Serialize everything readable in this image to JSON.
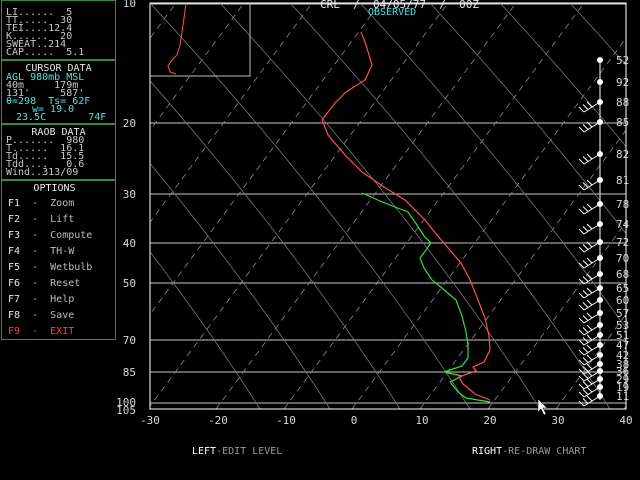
{
  "header": {
    "station": "CRL  /  04/05/77  /  00Z",
    "mode": "OBSERVED"
  },
  "indices": [
    "LI......  5",
    "TT.....  30",
    "TEI....12.4",
    "K......  20",
    "SWEAT..214",
    "CAP.....  5.1"
  ],
  "cursor": {
    "title": "CURSOR DATA",
    "row1": "AGL 980mb MSL",
    "row2": "40m     179m",
    "row3": "131'     587'",
    "row4": "θ=298  Ts= 62F",
    "row5": "w= 19.0",
    "row6": "23.5C       74F"
  },
  "raob": {
    "title": "RAOB DATA",
    "rows": [
      "P.......  980",
      "T......  16.1",
      "Td.....  15.5",
      "Tdd....   0.6",
      "Wind..313/09"
    ]
  },
  "options": {
    "title": "OPTIONS",
    "items": [
      {
        "key": "F1",
        "label": "Zoom"
      },
      {
        "key": "F2",
        "label": "Lift"
      },
      {
        "key": "F3",
        "label": "Compute"
      },
      {
        "key": "F4",
        "label": "TH-W"
      },
      {
        "key": "F5",
        "label": "Wetbulb"
      },
      {
        "key": "F6",
        "label": "Reset"
      },
      {
        "key": "F7",
        "label": "Help"
      },
      {
        "key": "F8",
        "label": "Save"
      },
      {
        "key": "F9",
        "label": "EXIT"
      }
    ]
  },
  "footer": {
    "left_key": "LEFT",
    "left_text": "-EDIT LEVEL",
    "right_key": "RIGHT",
    "right_text": "-RE-DRAW CHART"
  },
  "chart_data": {
    "type": "line",
    "x_ticks": [
      "-30",
      "-20",
      "-10",
      "0",
      "10",
      "20",
      "30",
      "40"
    ],
    "x_range": [
      -30,
      40
    ],
    "y_ticks": [
      "10",
      "20",
      "30",
      "40",
      "50",
      "70",
      "85",
      "100",
      "105"
    ],
    "wind_labels": [
      "52",
      "92",
      "88",
      "85",
      "82",
      "81",
      "78",
      "74",
      "72",
      "70",
      "68",
      "65",
      "60",
      "57",
      "53",
      "51",
      "47",
      "42",
      "38",
      "36",
      "29",
      "19",
      "11"
    ],
    "temperature_color": "#ff5050",
    "dewpoint_color": "#3cdc3c"
  }
}
